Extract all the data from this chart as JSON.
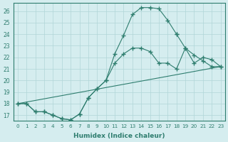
{
  "xlabel": "Humidex (Indice chaleur)",
  "background_color": "#d5edef",
  "line_color": "#2e7d6e",
  "grid_color": "#b0d5d8",
  "xlim": [
    -0.5,
    23.5
  ],
  "ylim": [
    16.5,
    26.7
  ],
  "yticks": [
    17,
    18,
    19,
    20,
    21,
    22,
    23,
    24,
    25,
    26
  ],
  "xticks": [
    0,
    1,
    2,
    3,
    4,
    5,
    6,
    7,
    8,
    9,
    10,
    11,
    12,
    13,
    14,
    15,
    16,
    17,
    18,
    19,
    20,
    21,
    22,
    23
  ],
  "series": [
    {
      "x": [
        0,
        1,
        2,
        3,
        4,
        5,
        6,
        7,
        8,
        9,
        10,
        11,
        12,
        13,
        14,
        15,
        16,
        17,
        18
      ],
      "y": [
        18.0,
        18.0,
        17.3,
        17.3,
        17.0,
        16.7,
        16.6,
        17.1,
        18.5,
        19.3,
        20.0,
        22.3,
        23.9,
        25.7,
        26.3,
        26.3,
        26.2,
        25.2,
        24.0
      ]
    },
    {
      "x": [
        0,
        1,
        2,
        3,
        4,
        5,
        6,
        7,
        8,
        9,
        10,
        11,
        12,
        13,
        14,
        15,
        16,
        17,
        18,
        19,
        20,
        21,
        22,
        23
      ],
      "y": [
        18.0,
        18.0,
        17.3,
        17.3,
        17.0,
        16.7,
        16.6,
        17.1,
        18.5,
        19.3,
        20.0,
        21.5,
        22.3,
        22.8,
        22.8,
        22.5,
        21.5,
        21.5,
        21.0,
        22.8,
        21.5,
        22.0,
        21.8,
        21.2
      ]
    },
    {
      "x": [
        0,
        23
      ],
      "y": [
        18.0,
        21.2
      ]
    },
    {
      "x": [
        18,
        19,
        20,
        21,
        22,
        23
      ],
      "y": [
        24.0,
        22.8,
        22.2,
        21.7,
        21.2,
        21.2
      ]
    }
  ]
}
